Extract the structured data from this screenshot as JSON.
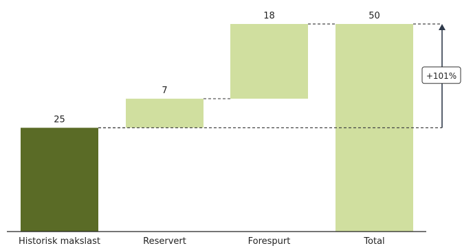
{
  "chart_data": {
    "type": "bar",
    "subtype": "waterfall",
    "categories": [
      "Historisk makslast",
      "Reservert",
      "Forespurt",
      "Total"
    ],
    "values": [
      25,
      7,
      18,
      50
    ],
    "bar_kinds": [
      "start",
      "increment",
      "increment",
      "total"
    ],
    "value_labels": [
      "25",
      "7",
      "18",
      "50"
    ],
    "title": "",
    "xlabel": "",
    "ylabel": "",
    "ylim": [
      0,
      50
    ],
    "grid": false,
    "legend": "none",
    "annotation": {
      "text": "+101%",
      "from_value": 25,
      "to_value": 50
    },
    "colors": {
      "start": "#5a6b26",
      "increment": "#d0df9f",
      "total": "#d0df9f",
      "connector": "#444444",
      "axis": "#222222",
      "arrow": "#2f3a4a"
    }
  }
}
